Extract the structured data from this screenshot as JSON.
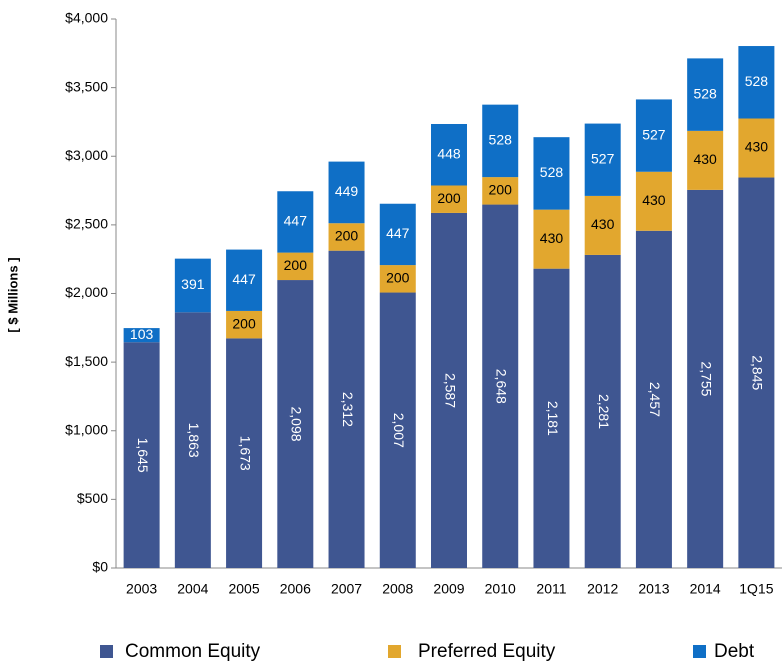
{
  "chart_data": {
    "type": "stacked_bar",
    "y_label": "[ $ Millions ]",
    "categories": [
      "2003",
      "2004",
      "2005",
      "2006",
      "2007",
      "2008",
      "2009",
      "2010",
      "2011",
      "2012",
      "2013",
      "2014",
      "1Q15"
    ],
    "series": [
      {
        "name": "Common Equity",
        "color": "#3f5691",
        "values": [
          1645,
          1863,
          1673,
          2098,
          2312,
          2007,
          2587,
          2648,
          2181,
          2281,
          2457,
          2755,
          2845
        ],
        "value_labels": [
          "1,645",
          "1,863",
          "1,673",
          "2,098",
          "2,312",
          "2,007",
          "2,587",
          "2,648",
          "2,181",
          "2,281",
          "2,457",
          "2,755",
          "2,845"
        ]
      },
      {
        "name": "Preferred Equity",
        "color": "#e2a72e",
        "values": [
          null,
          null,
          200,
          200,
          200,
          200,
          200,
          200,
          430,
          430,
          430,
          430,
          430
        ]
      },
      {
        "name": "Debt",
        "color": "#0f6fc6",
        "values": [
          103,
          391,
          447,
          447,
          449,
          447,
          448,
          528,
          528,
          527,
          527,
          528,
          528
        ]
      }
    ],
    "ylim": [
      0,
      4000
    ],
    "yticks": [
      {
        "value": 0,
        "label": "$0"
      },
      {
        "value": 500,
        "label": "$500"
      },
      {
        "value": 1000,
        "label": "$1,000"
      },
      {
        "value": 1500,
        "label": "$1,500"
      },
      {
        "value": 2000,
        "label": "$2,000"
      },
      {
        "value": 2500,
        "label": "$2,500"
      },
      {
        "value": 3000,
        "label": "$3,000"
      },
      {
        "value": 3500,
        "label": "$3,500"
      },
      {
        "value": 4000,
        "label": "$4,000"
      }
    ],
    "legend": "bottom"
  }
}
